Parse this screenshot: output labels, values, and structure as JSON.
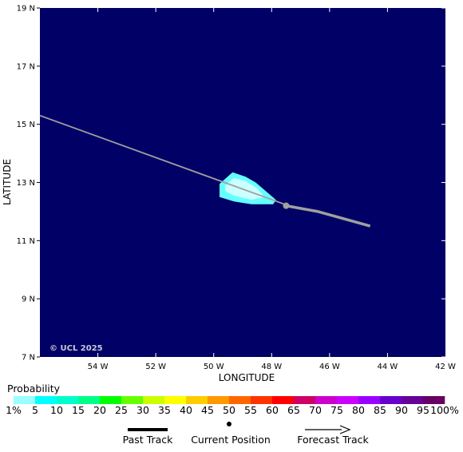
{
  "map": {
    "background_color": "#000066",
    "copyright": "© UCL 2025",
    "x_axis_title": "LONGITUDE",
    "y_axis_title": "LATITUDE",
    "lon_range": [
      -56,
      -42
    ],
    "lat_range": [
      7,
      19
    ],
    "lon_ticks": [
      {
        "value": -54,
        "label": "54 W"
      },
      {
        "value": -52,
        "label": "52 W"
      },
      {
        "value": -50,
        "label": "50 W"
      },
      {
        "value": -48,
        "label": "48 W"
      },
      {
        "value": -46,
        "label": "46 W"
      },
      {
        "value": -44,
        "label": "44 W"
      },
      {
        "value": -42,
        "label": "42 W"
      }
    ],
    "lat_ticks": [
      {
        "value": 19,
        "label": "19 N"
      },
      {
        "value": 17,
        "label": "17 N"
      },
      {
        "value": 15,
        "label": "15 N"
      },
      {
        "value": 13,
        "label": "13 N"
      },
      {
        "value": 11,
        "label": "11 N"
      },
      {
        "value": 9,
        "label": "9 N"
      },
      {
        "value": 7,
        "label": "7 N"
      }
    ],
    "past_track": [
      [
        -56,
        15.3
      ],
      [
        -47.55,
        12.25
      ]
    ],
    "current_position": [
      -47.5,
      12.2
    ],
    "forecast_track": [
      [
        -47.5,
        12.2
      ],
      [
        -46.4,
        12.0
      ],
      [
        -44.6,
        11.5
      ]
    ],
    "probability_outer": [
      [
        -49.8,
        12.95
      ],
      [
        -49.35,
        13.35
      ],
      [
        -48.9,
        13.2
      ],
      [
        -48.55,
        13.0
      ],
      [
        -48.2,
        12.7
      ],
      [
        -47.85,
        12.4
      ],
      [
        -47.95,
        12.25
      ],
      [
        -48.7,
        12.25
      ],
      [
        -49.3,
        12.35
      ],
      [
        -49.8,
        12.5
      ]
    ],
    "probability_inner": [
      [
        -49.6,
        12.9
      ],
      [
        -49.3,
        13.15
      ],
      [
        -48.9,
        13.05
      ],
      [
        -48.5,
        12.8
      ],
      [
        -48.25,
        12.5
      ],
      [
        -48.7,
        12.4
      ],
      [
        -49.3,
        12.55
      ],
      [
        -49.6,
        12.7
      ]
    ],
    "outer_color": "#66ffff",
    "inner_color": "#ccffff",
    "track_color": "#a0a0a0"
  },
  "legend": {
    "title": "Probability",
    "colors": [
      "#99ffff",
      "#00ffff",
      "#00ffcc",
      "#00ff88",
      "#00ff00",
      "#66ff00",
      "#ccff00",
      "#ffff00",
      "#ffcc00",
      "#ff9900",
      "#ff6600",
      "#ff3300",
      "#ff0000",
      "#cc0066",
      "#cc00cc",
      "#cc00ff",
      "#9900ff",
      "#6600cc",
      "#660099",
      "#660066"
    ],
    "labels": [
      "1%",
      "5",
      "10",
      "15",
      "20",
      "25",
      "30",
      "35",
      "40",
      "45",
      "50",
      "55",
      "60",
      "65",
      "70",
      "75",
      "80",
      "85",
      "90",
      "95",
      "100%"
    ]
  },
  "key": {
    "past_track": "Past Track",
    "current_position": "Current Position",
    "forecast_track": "Forecast Track"
  }
}
